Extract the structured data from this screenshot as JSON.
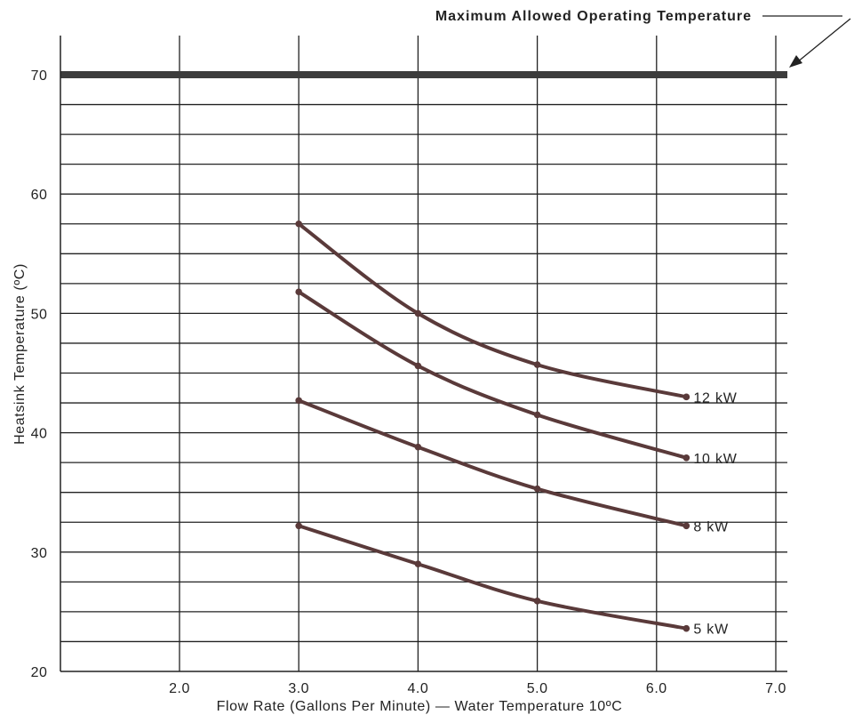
{
  "chart_data": {
    "type": "line",
    "title": "",
    "xlabel": "Flow Rate (Gallons Per Minute) — Water Temperature 10ºC",
    "ylabel": "Heatsink Temperature (ºC)",
    "xlim": [
      1.0,
      7.1
    ],
    "ylim": [
      20,
      72.5
    ],
    "x_ticks": [
      2.0,
      3.0,
      4.0,
      5.0,
      6.0,
      7.0
    ],
    "x_tick_labels": [
      "2.0",
      "3.0",
      "4.0",
      "5.0",
      "6.0",
      "7.0"
    ],
    "y_ticks": [
      20,
      30,
      40,
      50,
      60,
      70
    ],
    "y_tick_labels": [
      "20",
      "30",
      "40",
      "50",
      "60",
      "70"
    ],
    "y_minor_step": 2.5,
    "grid": true,
    "legend": "none (series labeled at line ends)",
    "series": [
      {
        "name": "12 kW",
        "x": [
          3.0,
          4.0,
          5.0,
          6.25
        ],
        "y": [
          57.5,
          50.0,
          45.7,
          43.0
        ]
      },
      {
        "name": "10 kW",
        "x": [
          3.0,
          4.0,
          5.0,
          6.25
        ],
        "y": [
          51.8,
          45.6,
          41.5,
          37.9
        ]
      },
      {
        "name": "8 kW",
        "x": [
          3.0,
          4.0,
          5.0,
          6.25
        ],
        "y": [
          42.7,
          38.8,
          35.3,
          32.2
        ]
      },
      {
        "name": "5 kW",
        "x": [
          3.0,
          4.0,
          5.0,
          6.25
        ],
        "y": [
          32.2,
          29.0,
          25.9,
          23.6
        ]
      }
    ],
    "reference_line": {
      "y": 70,
      "label": "Maximum Allowed Operating Temperature"
    }
  },
  "colors": {
    "series_line": "#5a3a3a",
    "reference_line": "#3c3c3c",
    "grid": "#222222",
    "text": "#222222"
  }
}
